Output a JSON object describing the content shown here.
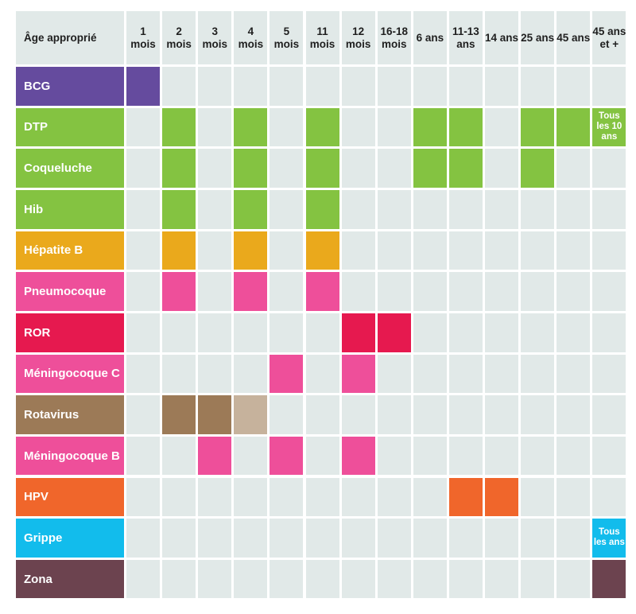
{
  "chart_data": {
    "type": "table",
    "header_label": "Âge approprié",
    "columns": [
      "1 mois",
      "2 mois",
      "3 mois",
      "4 mois",
      "5 mois",
      "11 mois",
      "12 mois",
      "16-18 mois",
      "6 ans",
      "11-13 ans",
      "14 ans",
      "25 ans",
      "45 ans",
      "45 ans et +"
    ],
    "rows": [
      {
        "label": "BCG",
        "color": "#654b9e",
        "marks": [
          0
        ]
      },
      {
        "label": "DTP",
        "color": "#84c341",
        "marks": [
          1,
          3,
          5,
          8,
          9,
          11,
          12
        ],
        "note": {
          "col": 13,
          "text": "Tous les 10 ans"
        }
      },
      {
        "label": "Coqueluche",
        "color": "#84c341",
        "marks": [
          1,
          3,
          5,
          8,
          9,
          11
        ]
      },
      {
        "label": "Hib",
        "color": "#84c341",
        "marks": [
          1,
          3,
          5
        ]
      },
      {
        "label": "Hépatite B",
        "color": "#eaa91c",
        "marks": [
          1,
          3,
          5
        ]
      },
      {
        "label": "Pneumocoque",
        "color": "#ee4f9a",
        "marks": [
          1,
          3,
          5
        ]
      },
      {
        "label": "ROR",
        "color": "#e6194f",
        "marks": [
          6,
          7
        ]
      },
      {
        "label": "Méningocoque C",
        "color": "#ee4f9a",
        "marks": [
          4,
          6
        ]
      },
      {
        "label": "Rotavirus",
        "color": "#9c7a57",
        "light_color": "#c6b29c",
        "marks": [
          1,
          2
        ],
        "light_marks": [
          3
        ]
      },
      {
        "label": "Méningocoque B",
        "color": "#ee4f9a",
        "marks": [
          2,
          4,
          6
        ]
      },
      {
        "label": "HPV",
        "color": "#f0662b",
        "marks": [
          9,
          10
        ]
      },
      {
        "label": "Grippe",
        "color": "#12bcec",
        "marks": [],
        "note": {
          "col": 13,
          "text": "Tous les ans"
        }
      },
      {
        "label": "Zona",
        "color": "#6c434f",
        "marks": [
          13
        ]
      }
    ]
  }
}
